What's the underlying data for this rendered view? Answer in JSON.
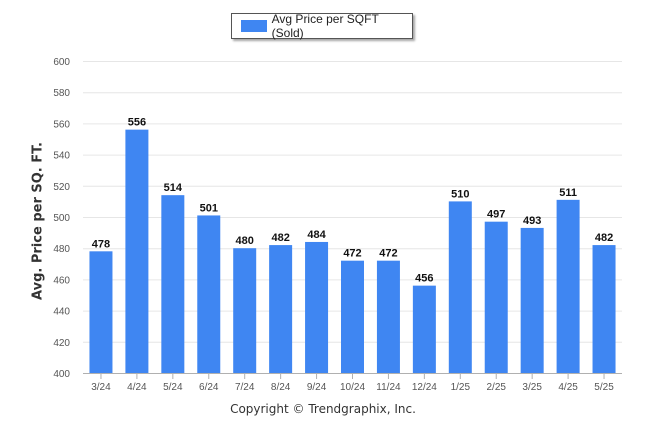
{
  "chart_data": {
    "type": "bar",
    "legend": "Avg Price per SQFT (Sold)",
    "legend_position": "top-center",
    "ylabel": "Avg. Price per SQ. FT.",
    "xlabel": "",
    "ylim": [
      400,
      600
    ],
    "yticks": [
      400,
      420,
      440,
      460,
      480,
      500,
      520,
      540,
      560,
      580,
      600
    ],
    "grid": true,
    "categories": [
      "3/24",
      "4/24",
      "5/24",
      "6/24",
      "7/24",
      "8/24",
      "9/24",
      "10/24",
      "11/24",
      "12/24",
      "1/25",
      "2/25",
      "3/25",
      "4/25",
      "5/25"
    ],
    "series": [
      {
        "name": "Avg Price per SQFT (Sold)",
        "values": [
          478,
          556,
          514,
          501,
          480,
          482,
          484,
          472,
          472,
          456,
          510,
          497,
          493,
          511,
          482
        ]
      }
    ],
    "colors": {
      "bar": "#3f86f2"
    }
  },
  "footer": "Copyright © Trendgraphix, Inc."
}
